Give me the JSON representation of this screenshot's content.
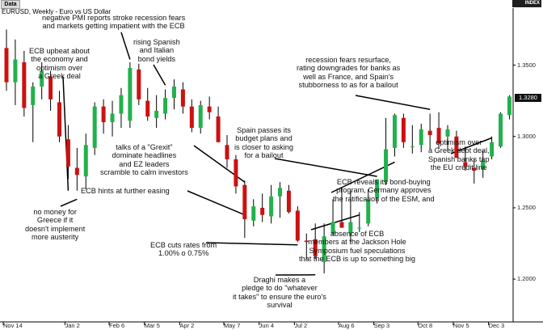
{
  "header": {
    "tab_label": "Data",
    "index_label": "INDEX",
    "chart_title": "EURUSD, Weekly - Euro vs US Dollar"
  },
  "chart_data": {
    "type": "candlestick",
    "title": "EURUSD, Weekly - Euro vs US Dollar",
    "ylim": [
      1.17,
      1.39
    ],
    "grid": false,
    "last_price": "1.3280",
    "colors": {
      "up": "#22b14c",
      "down": "#cc1111",
      "wick": "#000000",
      "background": "#ffffff"
    },
    "y_ticks": [
      "1.3500",
      "1.3000",
      "1.2500",
      "1.2000"
    ],
    "x_ticks": [
      "Nov 14",
      "Jan 2",
      "Feb 6",
      "Mar 5",
      "Apr 2",
      "May 7",
      "Jun 4",
      "Jul 2",
      "Aug 6",
      "Sep 3",
      "Oct 8",
      "Nov 5",
      "Dec 3"
    ],
    "candles": [
      {
        "o": 1.362,
        "h": 1.375,
        "l": 1.332,
        "c": 1.338
      },
      {
        "o": 1.338,
        "h": 1.368,
        "l": 1.322,
        "c": 1.354
      },
      {
        "o": 1.352,
        "h": 1.36,
        "l": 1.314,
        "c": 1.32
      },
      {
        "o": 1.322,
        "h": 1.338,
        "l": 1.296,
        "c": 1.335
      },
      {
        "o": 1.335,
        "h": 1.352,
        "l": 1.326,
        "c": 1.346
      },
      {
        "o": 1.342,
        "h": 1.346,
        "l": 1.318,
        "c": 1.326
      },
      {
        "o": 1.324,
        "h": 1.332,
        "l": 1.296,
        "c": 1.3
      },
      {
        "o": 1.298,
        "h": 1.308,
        "l": 1.27,
        "c": 1.279
      },
      {
        "o": 1.278,
        "h": 1.292,
        "l": 1.262,
        "c": 1.273
      },
      {
        "o": 1.272,
        "h": 1.302,
        "l": 1.263,
        "c": 1.294
      },
      {
        "o": 1.292,
        "h": 1.324,
        "l": 1.287,
        "c": 1.321
      },
      {
        "o": 1.321,
        "h": 1.326,
        "l": 1.302,
        "c": 1.31
      },
      {
        "o": 1.31,
        "h": 1.325,
        "l": 1.3,
        "c": 1.316
      },
      {
        "o": 1.316,
        "h": 1.334,
        "l": 1.306,
        "c": 1.329
      },
      {
        "o": 1.311,
        "h": 1.352,
        "l": 1.306,
        "c": 1.348
      },
      {
        "o": 1.347,
        "h": 1.351,
        "l": 1.322,
        "c": 1.326
      },
      {
        "o": 1.325,
        "h": 1.334,
        "l": 1.311,
        "c": 1.314
      },
      {
        "o": 1.313,
        "h": 1.329,
        "l": 1.306,
        "c": 1.318
      },
      {
        "o": 1.316,
        "h": 1.333,
        "l": 1.312,
        "c": 1.327
      },
      {
        "o": 1.327,
        "h": 1.34,
        "l": 1.319,
        "c": 1.335
      },
      {
        "o": 1.333,
        "h": 1.338,
        "l": 1.316,
        "c": 1.321
      },
      {
        "o": 1.321,
        "h": 1.326,
        "l": 1.303,
        "c": 1.306
      },
      {
        "o": 1.306,
        "h": 1.325,
        "l": 1.302,
        "c": 1.322
      },
      {
        "o": 1.321,
        "h": 1.328,
        "l": 1.312,
        "c": 1.317
      },
      {
        "o": 1.314,
        "h": 1.321,
        "l": 1.296,
        "c": 1.296
      },
      {
        "o": 1.294,
        "h": 1.301,
        "l": 1.278,
        "c": 1.284
      },
      {
        "o": 1.284,
        "h": 1.287,
        "l": 1.26,
        "c": 1.265
      },
      {
        "o": 1.266,
        "h": 1.269,
        "l": 1.229,
        "c": 1.242
      },
      {
        "o": 1.241,
        "h": 1.256,
        "l": 1.237,
        "c": 1.251
      },
      {
        "o": 1.25,
        "h": 1.26,
        "l": 1.24,
        "c": 1.245
      },
      {
        "o": 1.244,
        "h": 1.266,
        "l": 1.239,
        "c": 1.258
      },
      {
        "o": 1.258,
        "h": 1.268,
        "l": 1.243,
        "c": 1.264
      },
      {
        "o": 1.262,
        "h": 1.266,
        "l": 1.246,
        "c": 1.247
      },
      {
        "o": 1.248,
        "h": 1.251,
        "l": 1.226,
        "c": 1.227
      },
      {
        "o": 1.227,
        "h": 1.232,
        "l": 1.214,
        "c": 1.226
      },
      {
        "o": 1.228,
        "h": 1.239,
        "l": 1.214,
        "c": 1.216
      },
      {
        "o": 1.212,
        "h": 1.239,
        "l": 1.204,
        "c": 1.23
      },
      {
        "o": 1.232,
        "h": 1.256,
        "l": 1.231,
        "c": 1.24
      },
      {
        "o": 1.24,
        "h": 1.264,
        "l": 1.236,
        "c": 1.236
      },
      {
        "o": 1.232,
        "h": 1.262,
        "l": 1.226,
        "c": 1.24
      },
      {
        "o": 1.236,
        "h": 1.247,
        "l": 1.233,
        "c": 1.236
      },
      {
        "o": 1.239,
        "h": 1.263,
        "l": 1.237,
        "c": 1.256
      },
      {
        "o": 1.257,
        "h": 1.27,
        "l": 1.253,
        "c": 1.27
      },
      {
        "o": 1.268,
        "h": 1.313,
        "l": 1.266,
        "c": 1.291
      },
      {
        "o": 1.292,
        "h": 1.316,
        "l": 1.286,
        "c": 1.315
      },
      {
        "o": 1.313,
        "h": 1.316,
        "l": 1.292,
        "c": 1.296
      },
      {
        "o": 1.293,
        "h": 1.308,
        "l": 1.288,
        "c": 1.293
      },
      {
        "o": 1.294,
        "h": 1.309,
        "l": 1.289,
        "c": 1.305
      },
      {
        "o": 1.304,
        "h": 1.316,
        "l": 1.291,
        "c": 1.301
      },
      {
        "o": 1.306,
        "h": 1.317,
        "l": 1.291,
        "c": 1.295
      },
      {
        "o": 1.3,
        "h": 1.308,
        "l": 1.29,
        "c": 1.305
      },
      {
        "o": 1.3,
        "h": 1.304,
        "l": 1.285,
        "c": 1.285
      },
      {
        "o": 1.282,
        "h": 1.293,
        "l": 1.276,
        "c": 1.279
      },
      {
        "o": 1.278,
        "h": 1.284,
        "l": 1.267,
        "c": 1.276
      },
      {
        "o": 1.277,
        "h": 1.29,
        "l": 1.271,
        "c": 1.283
      },
      {
        "o": 1.286,
        "h": 1.3,
        "l": 1.284,
        "c": 1.296
      },
      {
        "o": 1.293,
        "h": 1.317,
        "l": 1.292,
        "c": 1.316
      },
      {
        "o": 1.315,
        "h": 1.329,
        "l": 1.312,
        "c": 1.328
      }
    ]
  },
  "annotations": [
    {
      "id": "pmi",
      "lines": [
        "negative PMI reports stroke recession fears",
        "and markets getting impatient with the ECB"
      ]
    },
    {
      "id": "ecb-upbeat",
      "lines": [
        "ECB upbeat about",
        "the economy and",
        "optimism over",
        "a Greek deal"
      ]
    },
    {
      "id": "no-money",
      "lines": [
        "no money for",
        "Greece if it",
        "doesn't implement",
        "more austerity"
      ]
    },
    {
      "id": "spanish-yields",
      "lines": [
        "rising Spanish",
        "and Italian",
        "bond yields"
      ]
    },
    {
      "id": "grexit",
      "lines": [
        "talks of a \"Grexit\"",
        "dominate headlines",
        "and EZ leaders",
        "scramble to calm investors"
      ]
    },
    {
      "id": "easing",
      "lines": [
        "ECB hints at further easing"
      ]
    },
    {
      "id": "rate-cut",
      "lines": [
        "ECB cuts rates from",
        "1.00% o 0.75%"
      ]
    },
    {
      "id": "draghi",
      "lines": [
        "Draghi makes a",
        "pledge to do \"whatever",
        "it takes\" to ensure the euro's",
        "survival"
      ]
    },
    {
      "id": "spain-budget",
      "lines": [
        "Spain passes its",
        "budget plans and",
        "is closer to asking",
        "for a bailout"
      ]
    },
    {
      "id": "jackson-hole",
      "lines": [
        "absence of ECB",
        "members at the Jackson Hole",
        "Symposium fuel speculations",
        "that the ECB is up to something big"
      ]
    },
    {
      "id": "recession",
      "lines": [
        "recession fears resurface,",
        "rating downgrades for banks as",
        "well as France, and Spain's",
        "stubborness to as for a bailout"
      ]
    },
    {
      "id": "bond-buying",
      "lines": [
        "ECB reveals its bond-buying",
        "program, Germany approves",
        "the ratification of the ESM, and"
      ]
    },
    {
      "id": "optimism-greek",
      "lines": [
        "optimism over",
        "a Greek debt deal,",
        "Spanish banks tap",
        "the EU credit line"
      ]
    }
  ]
}
